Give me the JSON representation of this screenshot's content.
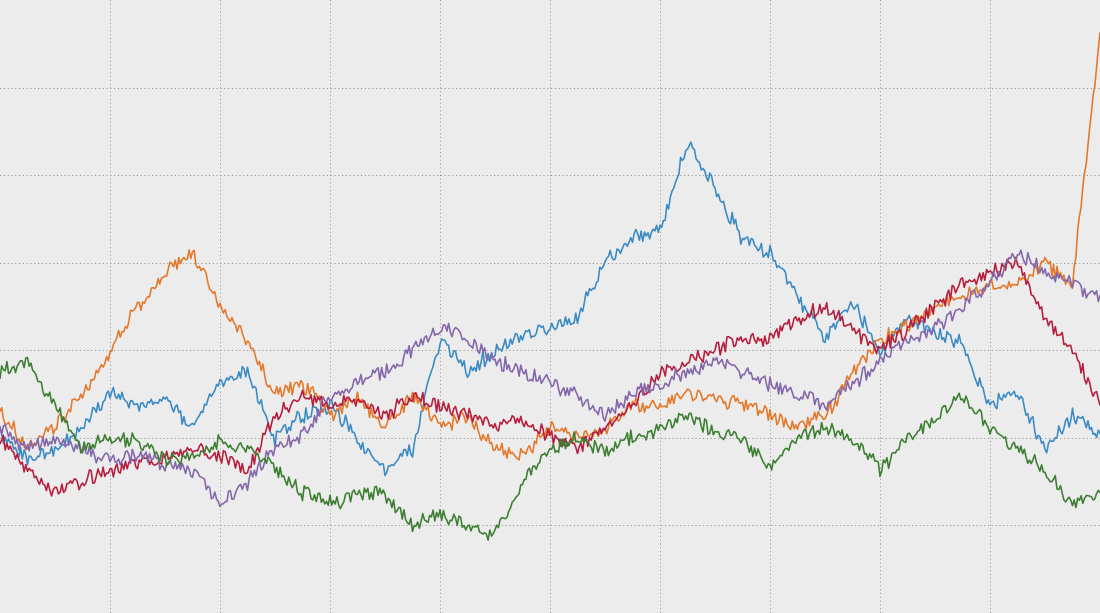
{
  "chart_data": {
    "type": "line",
    "title": "",
    "xlabel": "",
    "ylabel": "",
    "grid": true,
    "xlim": [
      0,
      1000
    ],
    "ylim": [
      -1.2,
      1.6
    ],
    "x_gridlines": [
      100,
      200,
      300,
      400,
      500,
      600,
      700,
      800,
      900
    ],
    "y_gridlines": [
      -0.8,
      -0.4,
      0.0,
      0.4,
      0.8,
      1.2
    ],
    "x": [
      0,
      25,
      50,
      75,
      100,
      125,
      150,
      175,
      200,
      225,
      250,
      275,
      300,
      325,
      350,
      375,
      400,
      425,
      450,
      475,
      500,
      525,
      550,
      575,
      600,
      625,
      650,
      675,
      700,
      725,
      750,
      775,
      800,
      825,
      850,
      875,
      900,
      925,
      950,
      975,
      1000
    ],
    "series": [
      {
        "color": "#3a8bc4",
        "values": [
          -0.38,
          -0.5,
          -0.45,
          -0.35,
          -0.2,
          -0.25,
          -0.22,
          -0.35,
          -0.15,
          -0.1,
          -0.4,
          -0.3,
          -0.25,
          -0.4,
          -0.55,
          -0.45,
          0.05,
          -0.1,
          0.0,
          0.07,
          0.1,
          0.15,
          0.4,
          0.52,
          0.55,
          0.95,
          0.75,
          0.5,
          0.45,
          0.25,
          0.05,
          0.22,
          -0.02,
          0.15,
          0.08,
          0.03,
          -0.25,
          -0.18,
          -0.45,
          -0.3,
          -0.38
        ]
      },
      {
        "color": "#e4792b",
        "values": [
          -0.28,
          -0.45,
          -0.35,
          -0.2,
          0.0,
          0.2,
          0.35,
          0.45,
          0.2,
          0.05,
          -0.2,
          -0.15,
          -0.3,
          -0.22,
          -0.35,
          -0.2,
          -0.35,
          -0.3,
          -0.45,
          -0.48,
          -0.35,
          -0.4,
          -0.35,
          -0.25,
          -0.25,
          -0.2,
          -0.22,
          -0.25,
          -0.3,
          -0.35,
          -0.3,
          -0.1,
          0.05,
          0.12,
          0.2,
          0.25,
          0.3,
          0.3,
          0.4,
          0.3,
          1.45
        ]
      },
      {
        "color": "#b51e3d",
        "values": [
          -0.4,
          -0.55,
          -0.65,
          -0.6,
          -0.55,
          -0.52,
          -0.5,
          -0.45,
          -0.48,
          -0.55,
          -0.3,
          -0.2,
          -0.25,
          -0.22,
          -0.3,
          -0.2,
          -0.25,
          -0.3,
          -0.35,
          -0.3,
          -0.4,
          -0.45,
          -0.35,
          -0.25,
          -0.1,
          -0.05,
          0.0,
          0.05,
          0.05,
          0.15,
          0.2,
          0.1,
          0.0,
          0.1,
          0.2,
          0.3,
          0.35,
          0.4,
          0.15,
          0.0,
          -0.25
        ]
      },
      {
        "color": "#8467ab",
        "values": [
          -0.35,
          -0.45,
          -0.4,
          -0.45,
          -0.5,
          -0.48,
          -0.52,
          -0.55,
          -0.7,
          -0.6,
          -0.45,
          -0.4,
          -0.2,
          -0.15,
          -0.1,
          0.0,
          0.1,
          0.05,
          -0.05,
          -0.1,
          -0.15,
          -0.2,
          -0.3,
          -0.2,
          -0.15,
          -0.1,
          -0.05,
          -0.1,
          -0.15,
          -0.2,
          -0.25,
          -0.15,
          -0.05,
          0.05,
          0.1,
          0.2,
          0.3,
          0.45,
          0.35,
          0.3,
          0.25
        ]
      },
      {
        "color": "#3d7f32",
        "values": [
          -0.1,
          -0.05,
          -0.25,
          -0.45,
          -0.4,
          -0.42,
          -0.5,
          -0.48,
          -0.42,
          -0.45,
          -0.55,
          -0.65,
          -0.7,
          -0.65,
          -0.65,
          -0.8,
          -0.75,
          -0.8,
          -0.85,
          -0.6,
          -0.45,
          -0.4,
          -0.45,
          -0.4,
          -0.35,
          -0.3,
          -0.38,
          -0.4,
          -0.55,
          -0.4,
          -0.35,
          -0.4,
          -0.55,
          -0.4,
          -0.3,
          -0.2,
          -0.35,
          -0.45,
          -0.55,
          -0.7,
          -0.65
        ]
      }
    ]
  }
}
